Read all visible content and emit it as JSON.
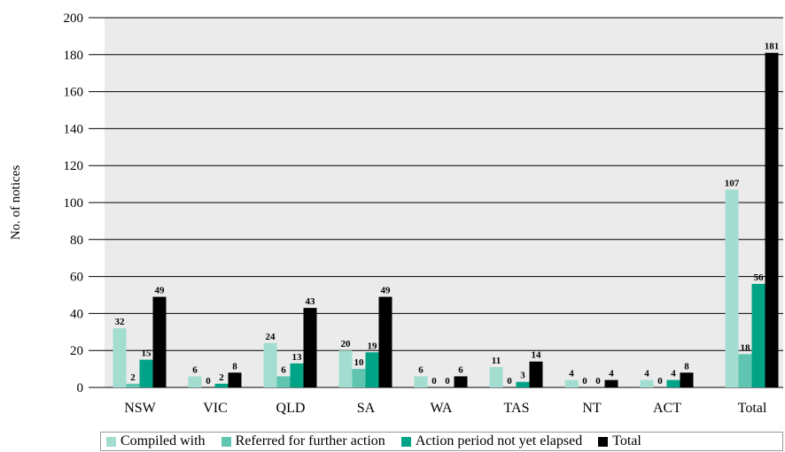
{
  "chart_data": {
    "type": "bar",
    "ylabel": "No. of notices",
    "ylim": [
      0,
      200
    ],
    "yticks": [
      0,
      20,
      40,
      60,
      80,
      100,
      120,
      140,
      160,
      180,
      200
    ],
    "grid": true,
    "legend_position": "bottom",
    "categories": [
      "NSW",
      "VIC",
      "QLD",
      "SA",
      "WA",
      "TAS",
      "NT",
      "ACT",
      "Total"
    ],
    "series": [
      {
        "name": "Compiled with",
        "color": "#a2ddd0",
        "values": [
          32,
          6,
          24,
          20,
          6,
          11,
          4,
          4,
          107
        ]
      },
      {
        "name": "Referred for further action",
        "color": "#5fc5b0",
        "values": [
          2,
          0,
          6,
          10,
          0,
          0,
          0,
          0,
          18
        ]
      },
      {
        "name": "Action period not yet elapsed",
        "color": "#00a386",
        "values": [
          15,
          2,
          13,
          19,
          0,
          3,
          0,
          4,
          56
        ]
      },
      {
        "name": "Total",
        "color": "#000000",
        "values": [
          49,
          8,
          43,
          49,
          6,
          14,
          4,
          8,
          181
        ]
      }
    ]
  }
}
